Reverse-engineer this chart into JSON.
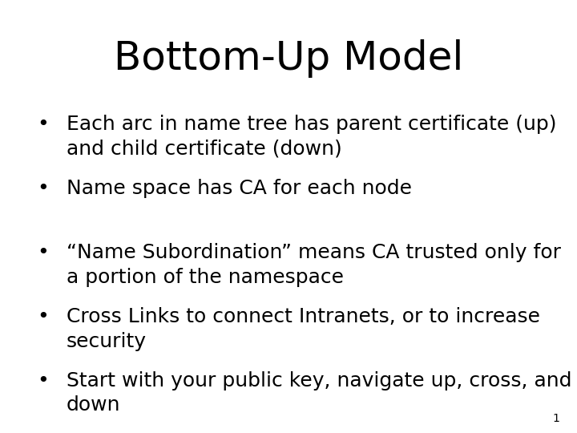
{
  "title": "Bottom-Up Model",
  "title_fontsize": 36,
  "title_font": "Georgia",
  "background_color": "#ffffff",
  "text_color": "#000000",
  "bullet_points": [
    "Each arc in name tree has parent certificate (up)\nand child certificate (down)",
    "Name space has CA for each node",
    "“Name Subordination” means CA trusted only for\na portion of the namespace",
    "Cross Links to connect Intranets, or to increase\nsecurity",
    "Start with your public key, navigate up, cross, and\ndown"
  ],
  "bullet_fontsize": 18,
  "bullet_font": "Georgia",
  "page_number": "1",
  "page_number_fontsize": 10
}
